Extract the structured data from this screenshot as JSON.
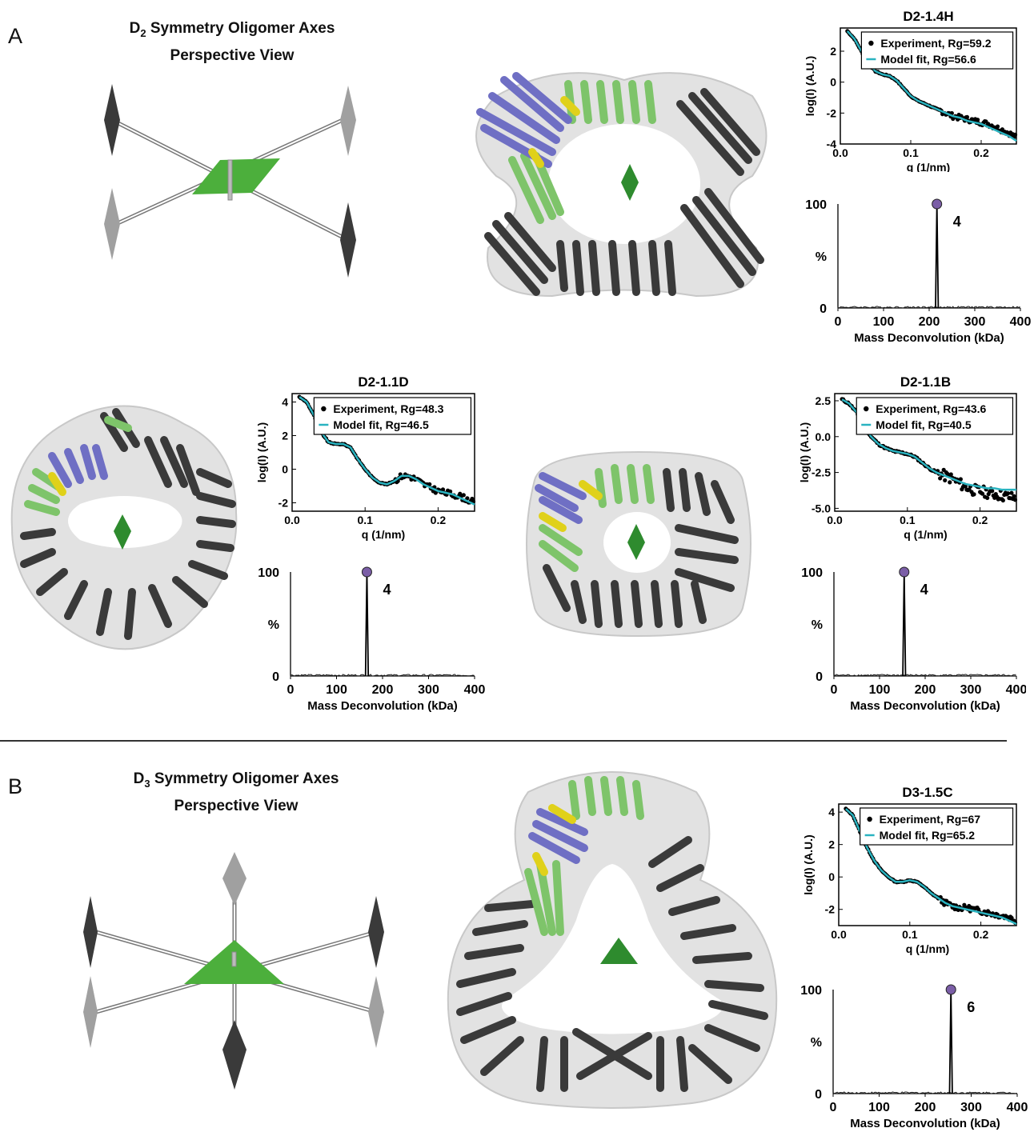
{
  "panels": [
    {
      "letter": "A",
      "axes_title_prefix": "D",
      "axes_title_sub": "2",
      "axes_title_rest": " Symmetry Oligomer Axes",
      "axes_subtitle": "Perspective View"
    },
    {
      "letter": "B",
      "axes_title_prefix": "D",
      "axes_title_sub": "3",
      "axes_title_rest": " Symmetry Oligomer Axes",
      "axes_subtitle": "Perspective View"
    }
  ],
  "colors": {
    "experiment": "#000000",
    "model_fit": "#2ab3c0",
    "peak_marker": "#7b5ea7",
    "symmetry_axis": "#2e8b2e",
    "helix_dark": "#3a3a3a",
    "helix_green": "#7ec46a",
    "helix_blue": "#6f6fc4",
    "helix_yellow": "#e0d11a"
  },
  "chart_data": [
    {
      "type": "line",
      "title": "D2-1.4H",
      "xlabel": "q (1/nm)",
      "ylabel": "log(I) (A.U.)",
      "xlim": [
        0,
        0.25
      ],
      "ylim": [
        -4,
        3.5
      ],
      "xticks": [
        "0.0",
        "0.1",
        "0.2"
      ],
      "xtick_values": [
        0.0,
        0.1,
        0.2
      ],
      "yticks": [
        "-4",
        "-2",
        "0",
        "2"
      ],
      "ytick_values": [
        -4,
        -2,
        0,
        2
      ],
      "legend_position": "top-right",
      "series": [
        {
          "name": "Experiment, Rg=59.2",
          "style": "points",
          "x": [
            0.01,
            0.02,
            0.03,
            0.04,
            0.05,
            0.06,
            0.07,
            0.08,
            0.09,
            0.1,
            0.11,
            0.12,
            0.13,
            0.14,
            0.15,
            0.16,
            0.17,
            0.18,
            0.19,
            0.2,
            0.21,
            0.22,
            0.23,
            0.24,
            0.25
          ],
          "y": [
            3.3,
            2.8,
            2.0,
            1.2,
            0.7,
            0.5,
            0.4,
            0.1,
            -0.4,
            -0.9,
            -1.2,
            -1.4,
            -1.6,
            -1.8,
            -2.0,
            -2.2,
            -2.3,
            -2.4,
            -2.5,
            -2.6,
            -2.7,
            -2.9,
            -3.1,
            -3.3,
            -3.6
          ]
        },
        {
          "name": "Model fit, Rg=56.6",
          "style": "line",
          "x": [
            0.01,
            0.02,
            0.03,
            0.04,
            0.05,
            0.06,
            0.07,
            0.08,
            0.09,
            0.1,
            0.11,
            0.12,
            0.13,
            0.14,
            0.15,
            0.16,
            0.17,
            0.18,
            0.19,
            0.2,
            0.21,
            0.22,
            0.23,
            0.24,
            0.25
          ],
          "y": [
            3.3,
            2.8,
            2.0,
            1.2,
            0.7,
            0.5,
            0.4,
            0.1,
            -0.4,
            -0.9,
            -1.2,
            -1.4,
            -1.6,
            -1.8,
            -2.0,
            -2.2,
            -2.3,
            -2.5,
            -2.6,
            -2.7,
            -2.9,
            -3.1,
            -3.3,
            -3.5,
            -3.8
          ]
        }
      ]
    },
    {
      "type": "line",
      "title": "",
      "xlabel": "Mass Deconvolution (kDa)",
      "ylabel": "%",
      "xlim": [
        0,
        400
      ],
      "ylim": [
        0,
        100
      ],
      "xticks": [
        "0",
        "100",
        "200",
        "300",
        "400"
      ],
      "xtick_values": [
        0,
        100,
        200,
        300,
        400
      ],
      "yticks": [
        "0",
        "%",
        "100"
      ],
      "ytick_values": [
        0,
        50,
        100
      ],
      "peak": {
        "x": 217,
        "y": 100,
        "label": "4"
      }
    },
    {
      "type": "line",
      "title": "D2-1.1D",
      "xlabel": "q (1/nm)",
      "ylabel": "log(I) (A.U.)",
      "xlim": [
        0,
        0.25
      ],
      "ylim": [
        -2.5,
        4.5
      ],
      "xticks": [
        "0.0",
        "0.1",
        "0.2"
      ],
      "xtick_values": [
        0.0,
        0.1,
        0.2
      ],
      "yticks": [
        "-2",
        "0",
        "2",
        "4"
      ],
      "ytick_values": [
        -2,
        0,
        2,
        4
      ],
      "legend_position": "top-right",
      "series": [
        {
          "name": "Experiment, Rg=48.3",
          "style": "points",
          "x": [
            0.01,
            0.02,
            0.03,
            0.04,
            0.05,
            0.06,
            0.07,
            0.08,
            0.09,
            0.1,
            0.11,
            0.12,
            0.13,
            0.14,
            0.15,
            0.16,
            0.17,
            0.18,
            0.19,
            0.2,
            0.21,
            0.22,
            0.23,
            0.24,
            0.25
          ],
          "y": [
            4.3,
            4.0,
            3.2,
            2.2,
            1.6,
            1.5,
            1.5,
            1.3,
            0.6,
            0.0,
            -0.5,
            -0.8,
            -0.9,
            -0.7,
            -0.4,
            -0.4,
            -0.6,
            -0.9,
            -1.1,
            -1.3,
            -1.4,
            -1.5,
            -1.6,
            -1.8,
            -2.0
          ]
        },
        {
          "name": "Model fit, Rg=46.5",
          "style": "line",
          "x": [
            0.01,
            0.02,
            0.03,
            0.04,
            0.05,
            0.06,
            0.07,
            0.08,
            0.09,
            0.1,
            0.11,
            0.12,
            0.13,
            0.14,
            0.15,
            0.16,
            0.17,
            0.18,
            0.19,
            0.2,
            0.21,
            0.22,
            0.23,
            0.24,
            0.25
          ],
          "y": [
            4.3,
            4.0,
            3.2,
            2.2,
            1.6,
            1.5,
            1.5,
            1.3,
            0.6,
            0.0,
            -0.5,
            -0.8,
            -0.9,
            -0.7,
            -0.4,
            -0.4,
            -0.6,
            -0.9,
            -1.1,
            -1.3,
            -1.4,
            -1.5,
            -1.7,
            -1.9,
            -2.1
          ]
        }
      ]
    },
    {
      "type": "line",
      "title": "",
      "xlabel": "Mass Deconvolution (kDa)",
      "ylabel": "%",
      "xlim": [
        0,
        400
      ],
      "ylim": [
        0,
        100
      ],
      "xticks": [
        "0",
        "100",
        "200",
        "300",
        "400"
      ],
      "xtick_values": [
        0,
        100,
        200,
        300,
        400
      ],
      "yticks": [
        "0",
        "%",
        "100"
      ],
      "ytick_values": [
        0,
        50,
        100
      ],
      "peak": {
        "x": 166,
        "y": 100,
        "label": "4"
      }
    },
    {
      "type": "line",
      "title": "D2-1.1B",
      "xlabel": "q (1/nm)",
      "ylabel": "log(I) (A.U.)",
      "xlim": [
        0,
        0.25
      ],
      "ylim": [
        -5.2,
        3.0
      ],
      "xticks": [
        "0.0",
        "0.1",
        "0.2"
      ],
      "xtick_values": [
        0.0,
        0.1,
        0.2
      ],
      "yticks": [
        "-5.0",
        "-2.5",
        "0.0",
        "2.5"
      ],
      "ytick_values": [
        -5.0,
        -2.5,
        0.0,
        2.5
      ],
      "legend_position": "top-right",
      "series": [
        {
          "name": "Experiment, Rg=43.6",
          "style": "points",
          "x": [
            0.01,
            0.02,
            0.03,
            0.04,
            0.05,
            0.06,
            0.07,
            0.08,
            0.09,
            0.1,
            0.11,
            0.12,
            0.13,
            0.14,
            0.15,
            0.16,
            0.17,
            0.18,
            0.19,
            0.2,
            0.21,
            0.22,
            0.23,
            0.24,
            0.25
          ],
          "y": [
            2.6,
            2.3,
            1.7,
            0.8,
            0.0,
            -0.5,
            -0.8,
            -1.0,
            -1.1,
            -1.2,
            -1.4,
            -1.8,
            -2.2,
            -2.5,
            -2.7,
            -2.9,
            -3.2,
            -3.5,
            -3.7,
            -3.8,
            -3.9,
            -4.0,
            -4.1,
            -4.2,
            -4.3
          ]
        },
        {
          "name": "Model fit, Rg=40.5",
          "style": "line",
          "x": [
            0.01,
            0.02,
            0.03,
            0.04,
            0.05,
            0.06,
            0.07,
            0.08,
            0.09,
            0.1,
            0.11,
            0.12,
            0.13,
            0.14,
            0.15,
            0.16,
            0.17,
            0.18,
            0.19,
            0.2,
            0.21,
            0.22,
            0.23,
            0.24,
            0.25
          ],
          "y": [
            2.6,
            2.3,
            1.7,
            0.8,
            0.0,
            -0.5,
            -0.8,
            -1.0,
            -1.1,
            -1.2,
            -1.4,
            -1.8,
            -2.2,
            -2.5,
            -2.7,
            -2.9,
            -3.1,
            -3.3,
            -3.4,
            -3.5,
            -3.6,
            -3.6,
            -3.7,
            -3.7,
            -3.7
          ]
        }
      ]
    },
    {
      "type": "line",
      "title": "",
      "xlabel": "Mass Deconvolution (kDa)",
      "ylabel": "%",
      "xlim": [
        0,
        400
      ],
      "ylim": [
        0,
        100
      ],
      "xticks": [
        "0",
        "100",
        "200",
        "300",
        "400"
      ],
      "xtick_values": [
        0,
        100,
        200,
        300,
        400
      ],
      "yticks": [
        "0",
        "%",
        "100"
      ],
      "ytick_values": [
        0,
        50,
        100
      ],
      "peak": {
        "x": 154,
        "y": 100,
        "label": "4"
      }
    },
    {
      "type": "line",
      "title": "D3-1.5C",
      "xlabel": "q (1/nm)",
      "ylabel": "log(I) (A.U.)",
      "xlim": [
        0,
        0.25
      ],
      "ylim": [
        -3,
        4.5
      ],
      "xticks": [
        "0.0",
        "0.1",
        "0.2"
      ],
      "xtick_values": [
        0.0,
        0.1,
        0.2
      ],
      "yticks": [
        "-2",
        "0",
        "2",
        "4"
      ],
      "ytick_values": [
        -2,
        0,
        2,
        4
      ],
      "legend_position": "top-right",
      "series": [
        {
          "name": "Experiment, Rg=67",
          "style": "points",
          "x": [
            0.01,
            0.02,
            0.03,
            0.04,
            0.05,
            0.06,
            0.07,
            0.08,
            0.09,
            0.1,
            0.11,
            0.12,
            0.13,
            0.14,
            0.15,
            0.16,
            0.17,
            0.18,
            0.19,
            0.2,
            0.21,
            0.22,
            0.23,
            0.24,
            0.25
          ],
          "y": [
            4.2,
            3.8,
            2.8,
            1.8,
            1.0,
            0.4,
            0.0,
            -0.3,
            -0.3,
            -0.2,
            -0.3,
            -0.6,
            -1.0,
            -1.3,
            -1.6,
            -1.8,
            -1.9,
            -1.9,
            -2.0,
            -2.1,
            -2.2,
            -2.3,
            -2.4,
            -2.5,
            -2.7
          ]
        },
        {
          "name": "Model fit, Rg=65.2",
          "style": "line",
          "x": [
            0.01,
            0.02,
            0.03,
            0.04,
            0.05,
            0.06,
            0.07,
            0.08,
            0.09,
            0.1,
            0.11,
            0.12,
            0.13,
            0.14,
            0.15,
            0.16,
            0.17,
            0.18,
            0.19,
            0.2,
            0.21,
            0.22,
            0.23,
            0.24,
            0.25
          ],
          "y": [
            4.2,
            3.8,
            2.8,
            1.8,
            1.0,
            0.4,
            0.0,
            -0.3,
            -0.3,
            -0.2,
            -0.3,
            -0.6,
            -1.0,
            -1.3,
            -1.6,
            -1.8,
            -1.9,
            -2.0,
            -2.1,
            -2.2,
            -2.3,
            -2.4,
            -2.5,
            -2.7,
            -2.9
          ]
        }
      ]
    },
    {
      "type": "line",
      "title": "",
      "xlabel": "Mass Deconvolution (kDa)",
      "ylabel": "%",
      "xlim": [
        0,
        400
      ],
      "ylim": [
        0,
        100
      ],
      "xticks": [
        "0",
        "100",
        "200",
        "300",
        "400"
      ],
      "xtick_values": [
        0,
        100,
        200,
        300,
        400
      ],
      "yticks": [
        "0",
        "%",
        "100"
      ],
      "ytick_values": [
        0,
        50,
        100
      ],
      "peak": {
        "x": 256,
        "y": 100,
        "label": "6"
      }
    }
  ]
}
